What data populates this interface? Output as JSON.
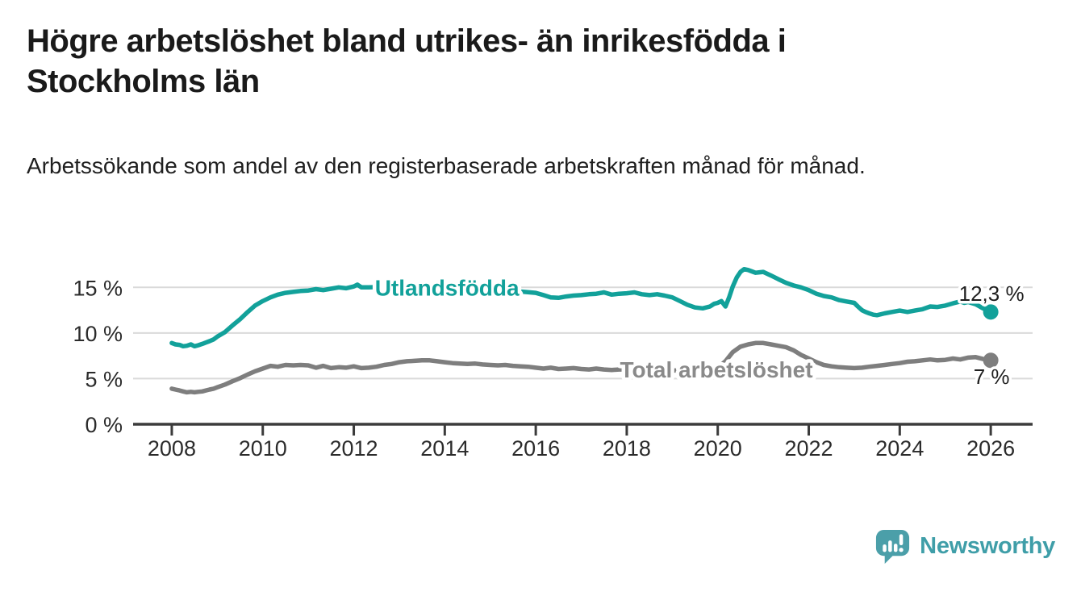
{
  "header": {
    "title": "Högre arbetslöshet bland utrikes- än inrikesfödda i Stockholms län",
    "subtitle": "Arbetssökande som andel av den registerbaserade arbetskraften månad för månad."
  },
  "branding": {
    "wordmark": "Newsworthy",
    "logo_icon": "bar-chart-speech-bubble-icon",
    "logo_color": "#4b9fa9"
  },
  "chart_data": {
    "type": "line",
    "title": "Högre arbetslöshet bland utrikes- än inrikesfödda i Stockholms län",
    "subtitle": "Arbetssökande som andel av den registerbaserade arbetskraften månad för månad.",
    "xlabel": "",
    "ylabel": "",
    "x_unit": "year (monthly observations)",
    "xlim": [
      2007.15,
      2026.92
    ],
    "ylim": [
      0,
      17.5
    ],
    "x_ticks": [
      2008,
      2010,
      2012,
      2014,
      2016,
      2018,
      2020,
      2022,
      2024,
      2026
    ],
    "x_tick_labels": [
      "2008",
      "2010",
      "2012",
      "2014",
      "2016",
      "2018",
      "2020",
      "2022",
      "2024",
      "2026"
    ],
    "y_ticks": [
      0,
      5,
      10,
      15
    ],
    "y_tick_labels": [
      "0 %",
      "5 %",
      "10 %",
      "15 %"
    ],
    "grid": "horizontal",
    "legend": "inline-labels",
    "colors": {
      "grid": "#dadada",
      "axis": "#3b3b3b",
      "tick_text": "#2b2b2b",
      "value_text": "#1f1f1f"
    },
    "series": [
      {
        "name": "Utlandsfödda",
        "color": "#12a19a",
        "label_color": "#12a19a",
        "label_pos": [
          2014.05,
          15.0
        ],
        "end_value": 12.3,
        "end_label": "12,3 %",
        "points": [
          [
            2008.0,
            8.9
          ],
          [
            2008.08,
            8.75
          ],
          [
            2008.17,
            8.7
          ],
          [
            2008.25,
            8.55
          ],
          [
            2008.33,
            8.6
          ],
          [
            2008.42,
            8.75
          ],
          [
            2008.5,
            8.55
          ],
          [
            2008.58,
            8.65
          ],
          [
            2008.67,
            8.8
          ],
          [
            2008.75,
            8.95
          ],
          [
            2008.83,
            9.1
          ],
          [
            2008.92,
            9.3
          ],
          [
            2009.0,
            9.6
          ],
          [
            2009.17,
            10.1
          ],
          [
            2009.33,
            10.8
          ],
          [
            2009.5,
            11.5
          ],
          [
            2009.67,
            12.3
          ],
          [
            2009.83,
            13.0
          ],
          [
            2010.0,
            13.5
          ],
          [
            2010.17,
            13.9
          ],
          [
            2010.33,
            14.2
          ],
          [
            2010.5,
            14.4
          ],
          [
            2010.67,
            14.5
          ],
          [
            2010.83,
            14.6
          ],
          [
            2011.0,
            14.65
          ],
          [
            2011.17,
            14.8
          ],
          [
            2011.33,
            14.7
          ],
          [
            2011.5,
            14.85
          ],
          [
            2011.67,
            15.0
          ],
          [
            2011.83,
            14.9
          ],
          [
            2012.0,
            15.1
          ],
          [
            2012.08,
            15.3
          ],
          [
            2012.17,
            15.0
          ],
          [
            2012.33,
            15.0
          ],
          [
            2012.58,
            15.05
          ],
          [
            2012.83,
            15.1
          ],
          [
            2013.0,
            15.05
          ],
          [
            2013.25,
            15.15
          ],
          [
            2013.5,
            15.2
          ],
          [
            2013.75,
            15.05
          ],
          [
            2014.0,
            14.95
          ],
          [
            2014.25,
            14.9
          ],
          [
            2014.5,
            14.85
          ],
          [
            2014.75,
            14.8
          ],
          [
            2015.0,
            14.75
          ],
          [
            2015.25,
            14.7
          ],
          [
            2015.5,
            14.6
          ],
          [
            2015.75,
            14.5
          ],
          [
            2016.0,
            14.4
          ],
          [
            2016.17,
            14.15
          ],
          [
            2016.33,
            13.9
          ],
          [
            2016.5,
            13.85
          ],
          [
            2016.67,
            14.0
          ],
          [
            2016.83,
            14.1
          ],
          [
            2017.0,
            14.15
          ],
          [
            2017.17,
            14.25
          ],
          [
            2017.33,
            14.3
          ],
          [
            2017.5,
            14.45
          ],
          [
            2017.67,
            14.2
          ],
          [
            2017.83,
            14.3
          ],
          [
            2018.0,
            14.35
          ],
          [
            2018.17,
            14.45
          ],
          [
            2018.33,
            14.25
          ],
          [
            2018.5,
            14.15
          ],
          [
            2018.67,
            14.25
          ],
          [
            2018.83,
            14.1
          ],
          [
            2019.0,
            13.9
          ],
          [
            2019.17,
            13.5
          ],
          [
            2019.33,
            13.1
          ],
          [
            2019.5,
            12.8
          ],
          [
            2019.67,
            12.7
          ],
          [
            2019.83,
            12.9
          ],
          [
            2019.92,
            13.2
          ],
          [
            2020.0,
            13.3
          ],
          [
            2020.08,
            13.5
          ],
          [
            2020.17,
            12.9
          ],
          [
            2020.25,
            13.9
          ],
          [
            2020.33,
            15.1
          ],
          [
            2020.42,
            16.1
          ],
          [
            2020.5,
            16.7
          ],
          [
            2020.58,
            17.0
          ],
          [
            2020.67,
            16.9
          ],
          [
            2020.75,
            16.75
          ],
          [
            2020.83,
            16.6
          ],
          [
            2020.92,
            16.65
          ],
          [
            2021.0,
            16.7
          ],
          [
            2021.17,
            16.3
          ],
          [
            2021.33,
            15.9
          ],
          [
            2021.5,
            15.5
          ],
          [
            2021.67,
            15.2
          ],
          [
            2021.83,
            15.0
          ],
          [
            2022.0,
            14.7
          ],
          [
            2022.17,
            14.3
          ],
          [
            2022.33,
            14.05
          ],
          [
            2022.5,
            13.9
          ],
          [
            2022.67,
            13.6
          ],
          [
            2022.83,
            13.45
          ],
          [
            2023.0,
            13.3
          ],
          [
            2023.08,
            12.9
          ],
          [
            2023.17,
            12.5
          ],
          [
            2023.25,
            12.3
          ],
          [
            2023.33,
            12.15
          ],
          [
            2023.42,
            12.0
          ],
          [
            2023.5,
            11.95
          ],
          [
            2023.67,
            12.15
          ],
          [
            2023.83,
            12.3
          ],
          [
            2024.0,
            12.45
          ],
          [
            2024.17,
            12.3
          ],
          [
            2024.33,
            12.45
          ],
          [
            2024.5,
            12.6
          ],
          [
            2024.67,
            12.9
          ],
          [
            2024.83,
            12.85
          ],
          [
            2025.0,
            13.0
          ],
          [
            2025.17,
            13.25
          ],
          [
            2025.33,
            13.45
          ],
          [
            2025.42,
            13.3
          ],
          [
            2025.5,
            13.4
          ],
          [
            2025.67,
            13.15
          ],
          [
            2025.83,
            12.7
          ],
          [
            2026.0,
            12.3
          ]
        ]
      },
      {
        "name": "Total arbetslöshet",
        "color": "#7e7e7e",
        "label_color": "#8a8a8a",
        "label_pos": [
          2019.97,
          6.0
        ],
        "end_value": 7.0,
        "end_label": "7 %",
        "points": [
          [
            2008.0,
            3.9
          ],
          [
            2008.08,
            3.8
          ],
          [
            2008.17,
            3.7
          ],
          [
            2008.25,
            3.6
          ],
          [
            2008.33,
            3.5
          ],
          [
            2008.42,
            3.55
          ],
          [
            2008.5,
            3.5
          ],
          [
            2008.58,
            3.55
          ],
          [
            2008.67,
            3.6
          ],
          [
            2008.75,
            3.7
          ],
          [
            2008.83,
            3.8
          ],
          [
            2008.92,
            3.9
          ],
          [
            2009.0,
            4.05
          ],
          [
            2009.17,
            4.35
          ],
          [
            2009.33,
            4.7
          ],
          [
            2009.5,
            5.05
          ],
          [
            2009.67,
            5.45
          ],
          [
            2009.83,
            5.8
          ],
          [
            2010.0,
            6.1
          ],
          [
            2010.17,
            6.4
          ],
          [
            2010.33,
            6.3
          ],
          [
            2010.5,
            6.5
          ],
          [
            2010.67,
            6.45
          ],
          [
            2010.83,
            6.5
          ],
          [
            2011.0,
            6.45
          ],
          [
            2011.17,
            6.2
          ],
          [
            2011.33,
            6.4
          ],
          [
            2011.5,
            6.15
          ],
          [
            2011.67,
            6.25
          ],
          [
            2011.83,
            6.2
          ],
          [
            2012.0,
            6.35
          ],
          [
            2012.17,
            6.15
          ],
          [
            2012.33,
            6.2
          ],
          [
            2012.5,
            6.3
          ],
          [
            2012.67,
            6.5
          ],
          [
            2012.83,
            6.6
          ],
          [
            2013.0,
            6.8
          ],
          [
            2013.17,
            6.9
          ],
          [
            2013.33,
            6.95
          ],
          [
            2013.5,
            7.0
          ],
          [
            2013.67,
            7.0
          ],
          [
            2013.83,
            6.9
          ],
          [
            2014.0,
            6.8
          ],
          [
            2014.17,
            6.7
          ],
          [
            2014.33,
            6.65
          ],
          [
            2014.5,
            6.6
          ],
          [
            2014.67,
            6.65
          ],
          [
            2014.83,
            6.55
          ],
          [
            2015.0,
            6.5
          ],
          [
            2015.17,
            6.45
          ],
          [
            2015.33,
            6.5
          ],
          [
            2015.5,
            6.4
          ],
          [
            2015.67,
            6.35
          ],
          [
            2015.83,
            6.3
          ],
          [
            2016.0,
            6.2
          ],
          [
            2016.17,
            6.1
          ],
          [
            2016.33,
            6.2
          ],
          [
            2016.5,
            6.05
          ],
          [
            2016.67,
            6.1
          ],
          [
            2016.83,
            6.15
          ],
          [
            2017.0,
            6.05
          ],
          [
            2017.17,
            6.0
          ],
          [
            2017.33,
            6.1
          ],
          [
            2017.5,
            6.0
          ],
          [
            2017.67,
            5.95
          ],
          [
            2017.83,
            6.0
          ],
          [
            2018.0,
            6.0
          ],
          [
            2018.25,
            5.95
          ],
          [
            2018.5,
            5.9
          ],
          [
            2018.75,
            5.95
          ],
          [
            2019.0,
            5.9
          ],
          [
            2019.25,
            5.85
          ],
          [
            2019.5,
            5.8
          ],
          [
            2019.75,
            5.9
          ],
          [
            2020.0,
            6.2
          ],
          [
            2020.17,
            6.9
          ],
          [
            2020.33,
            7.9
          ],
          [
            2020.5,
            8.5
          ],
          [
            2020.67,
            8.75
          ],
          [
            2020.83,
            8.9
          ],
          [
            2021.0,
            8.9
          ],
          [
            2021.17,
            8.75
          ],
          [
            2021.33,
            8.6
          ],
          [
            2021.5,
            8.45
          ],
          [
            2021.67,
            8.1
          ],
          [
            2021.83,
            7.6
          ],
          [
            2022.0,
            7.2
          ],
          [
            2022.17,
            6.8
          ],
          [
            2022.33,
            6.5
          ],
          [
            2022.5,
            6.35
          ],
          [
            2022.67,
            6.25
          ],
          [
            2022.83,
            6.2
          ],
          [
            2023.0,
            6.15
          ],
          [
            2023.17,
            6.2
          ],
          [
            2023.33,
            6.3
          ],
          [
            2023.5,
            6.4
          ],
          [
            2023.67,
            6.5
          ],
          [
            2023.83,
            6.6
          ],
          [
            2024.0,
            6.7
          ],
          [
            2024.17,
            6.85
          ],
          [
            2024.33,
            6.9
          ],
          [
            2024.5,
            7.0
          ],
          [
            2024.67,
            7.1
          ],
          [
            2024.83,
            7.0
          ],
          [
            2025.0,
            7.05
          ],
          [
            2025.17,
            7.2
          ],
          [
            2025.33,
            7.1
          ],
          [
            2025.5,
            7.3
          ],
          [
            2025.67,
            7.35
          ],
          [
            2025.83,
            7.15
          ],
          [
            2026.0,
            7.0
          ]
        ]
      }
    ]
  }
}
